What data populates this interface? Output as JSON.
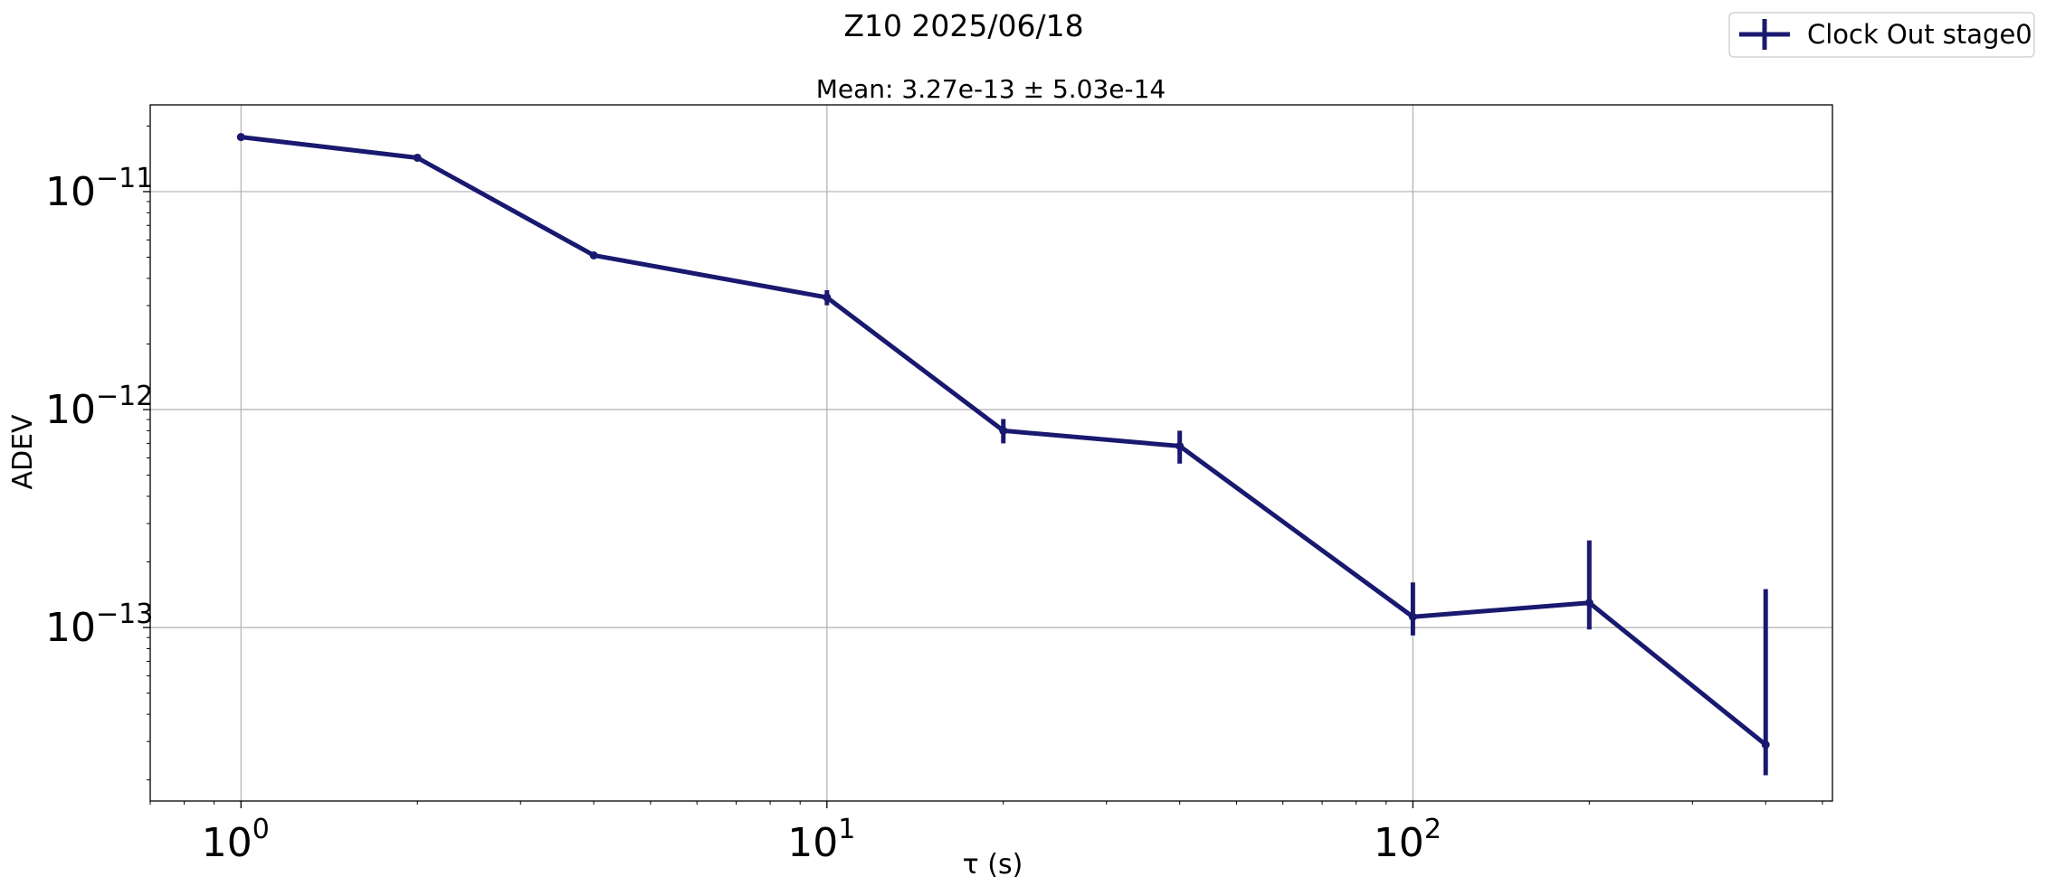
{
  "chart_data": {
    "type": "line",
    "title": "Z10 2025/06/18",
    "subtitle": "Mean: 3.27e-13 ± 5.03e-14",
    "xlabel": "τ (s)",
    "ylabel": "ADEV",
    "xscale": "log",
    "yscale": "log",
    "xlim": [
      0.7,
      520
    ],
    "ylim": [
      1.6e-14,
      2.5e-11
    ],
    "grid": true,
    "legend_position": "top-right",
    "x_ticks": [
      {
        "base": "10",
        "exp": "0",
        "value": 1
      },
      {
        "base": "10",
        "exp": "1",
        "value": 10
      },
      {
        "base": "10",
        "exp": "2",
        "value": 100
      }
    ],
    "y_ticks": [
      {
        "base": "10",
        "exp": "−11",
        "value": 1e-11
      },
      {
        "base": "10",
        "exp": "−12",
        "value": 1e-12
      },
      {
        "base": "10",
        "exp": "−13",
        "value": 1e-13
      }
    ],
    "series": [
      {
        "name": "Clock Out stage0",
        "color": "#191970",
        "x": [
          1,
          2,
          4,
          10,
          20,
          40,
          100,
          200,
          400
        ],
        "y": [
          1.78e-11,
          1.43e-11,
          5.1e-12,
          3.27e-12,
          8e-13,
          6.8e-13,
          1.12e-13,
          1.3e-13,
          2.9e-14
        ],
        "err_low": [
          2.2e-13,
          2.2e-13,
          1.3e-13,
          2.6e-13,
          1e-13,
          1.15e-13,
          2e-14,
          3.2e-14,
          8e-15
        ],
        "err_high": [
          2.2e-13,
          2.2e-13,
          1.3e-13,
          2.6e-13,
          1.05e-13,
          1.2e-13,
          4.9e-14,
          1.21e-13,
          1.21e-13
        ]
      }
    ]
  }
}
